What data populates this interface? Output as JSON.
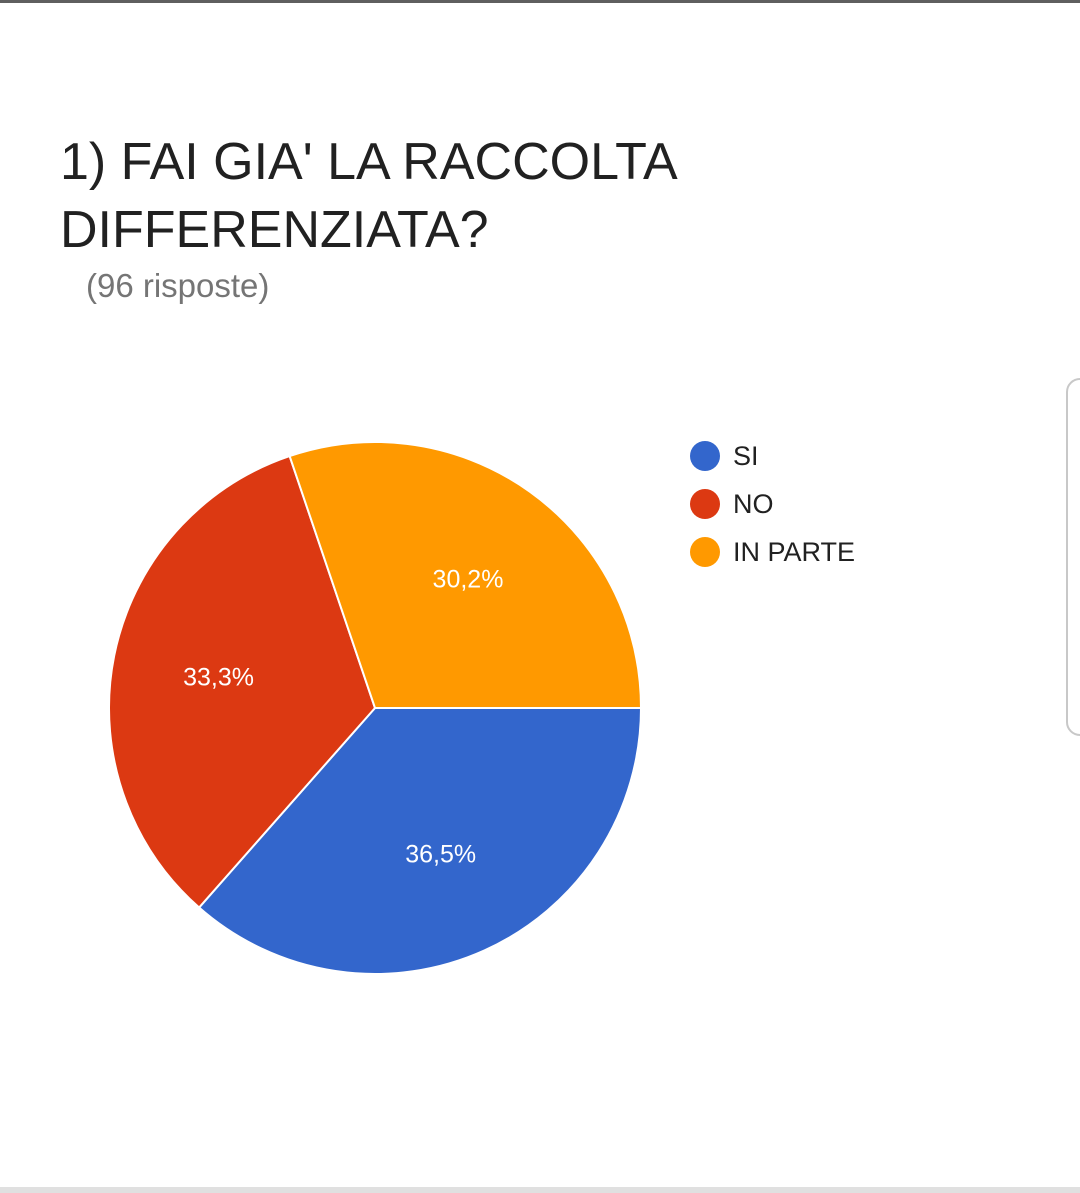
{
  "title": "1) FAI GIA' LA RACCOLTA DIFFERENZIATA?",
  "subtitle": "(96 risposte)",
  "chart_data": {
    "type": "pie",
    "title": "1) FAI GIA' LA RACCOLTA DIFFERENZIATA?",
    "subtitle": "(96 risposte)",
    "categories": [
      "SI",
      "NO",
      "IN PARTE"
    ],
    "values": [
      36.5,
      33.3,
      30.2
    ],
    "value_labels": [
      "36,5%",
      "33,3%",
      "30,2%"
    ],
    "colors": [
      "#3366cc",
      "#dc3912",
      "#ff9900"
    ],
    "legend_position": "right"
  },
  "legend": {
    "items": [
      {
        "label": "SI",
        "color": "#3366cc"
      },
      {
        "label": "NO",
        "color": "#dc3912"
      },
      {
        "label": "IN PARTE",
        "color": "#ff9900"
      }
    ]
  }
}
